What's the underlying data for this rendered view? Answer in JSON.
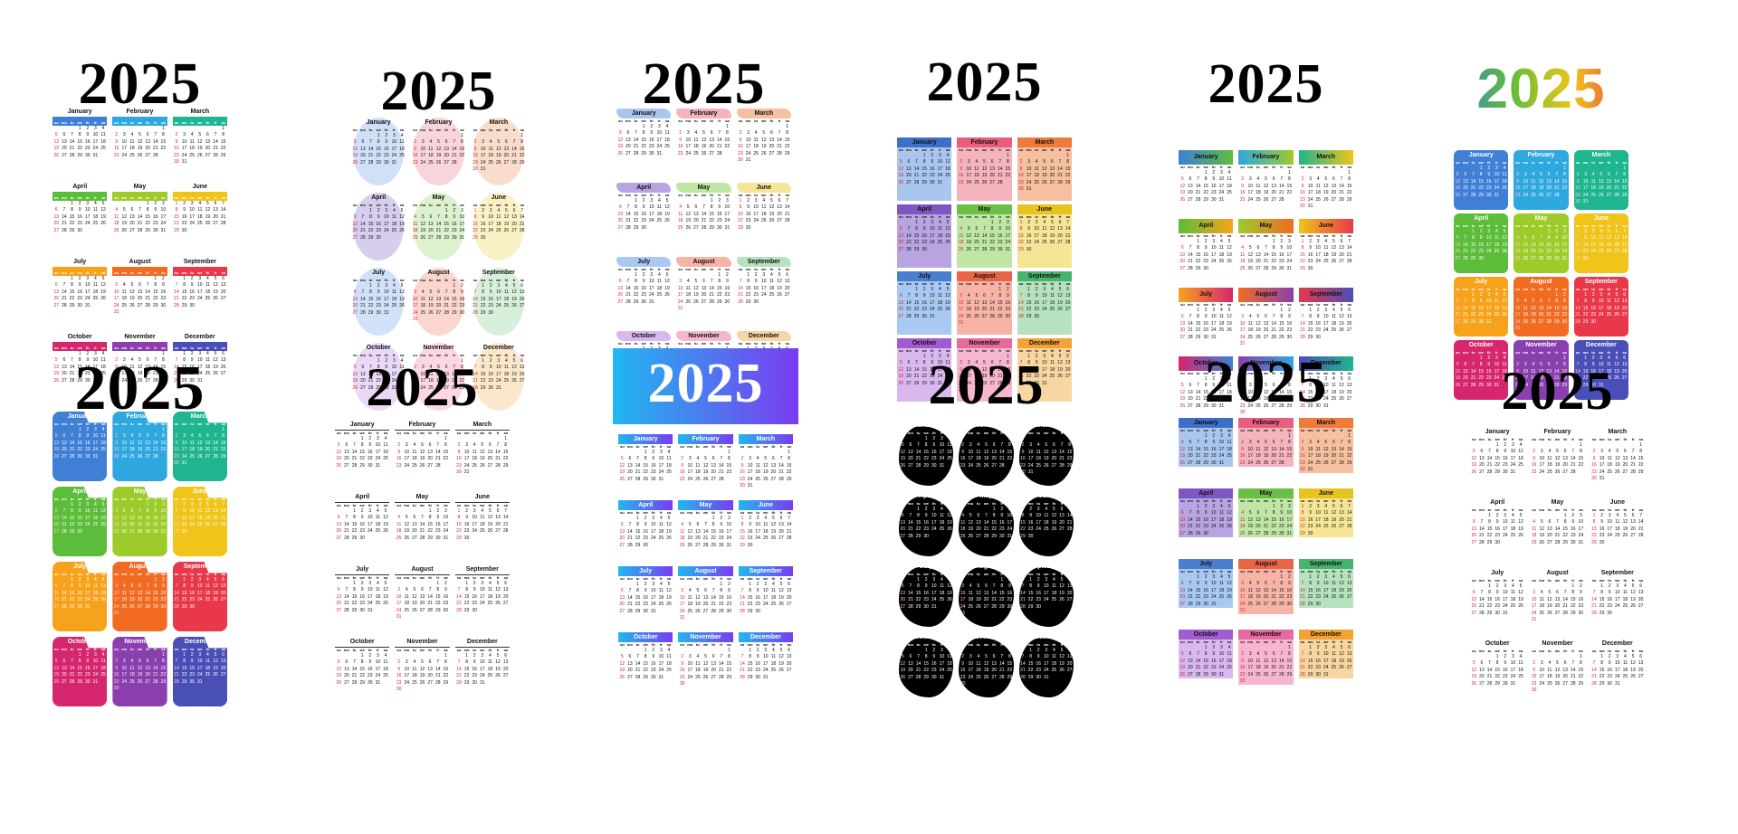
{
  "year": "2025",
  "weekdays": [
    "su",
    "mo",
    "tu",
    "we",
    "th",
    "fr",
    "sa"
  ],
  "months": [
    {
      "name": "January",
      "first": 3,
      "days": 31
    },
    {
      "name": "February",
      "first": 6,
      "days": 28
    },
    {
      "name": "March",
      "first": 6,
      "days": 31
    },
    {
      "name": "April",
      "first": 2,
      "days": 30
    },
    {
      "name": "May",
      "first": 4,
      "days": 31
    },
    {
      "name": "June",
      "first": 0,
      "days": 30
    },
    {
      "name": "July",
      "first": 2,
      "days": 31
    },
    {
      "name": "August",
      "first": 5,
      "days": 31
    },
    {
      "name": "September",
      "first": 1,
      "days": 30
    },
    {
      "name": "October",
      "first": 3,
      "days": 31
    },
    {
      "name": "November",
      "first": 6,
      "days": 30
    },
    {
      "name": "December",
      "first": 1,
      "days": 31
    }
  ],
  "rainbow": [
    "#3f7fd6",
    "#2fa7df",
    "#1fb58f",
    "#5cbd3b",
    "#9ccb2a",
    "#f0c419",
    "#f7a21b",
    "#f26b22",
    "#e9384a",
    "#d6266e",
    "#8b3fae",
    "#4a4fb8"
  ],
  "pastel": [
    "#aac6ef",
    "#f4b3bd",
    "#f6bf9f",
    "#b7a4e0",
    "#bfe6a5",
    "#f6e596",
    "#a9c9f2",
    "#f7b4a6",
    "#b6e3bd",
    "#d9b8f0",
    "#f7b6cf",
    "#f8d6a2"
  ],
  "strong": [
    "#3d6fc9",
    "#e95d7e",
    "#ef7a3b",
    "#7d56c2",
    "#6cbf46",
    "#e8c21d",
    "#4a7fd0",
    "#ea6548",
    "#47b36c",
    "#a35bd0",
    "#e56aa0",
    "#f3a236"
  ],
  "black": "#000000",
  "ink": "#111111",
  "sunday_red": "#d21f3c",
  "banner_gradient": [
    "#20b7f0",
    "#7a3cf0"
  ]
}
